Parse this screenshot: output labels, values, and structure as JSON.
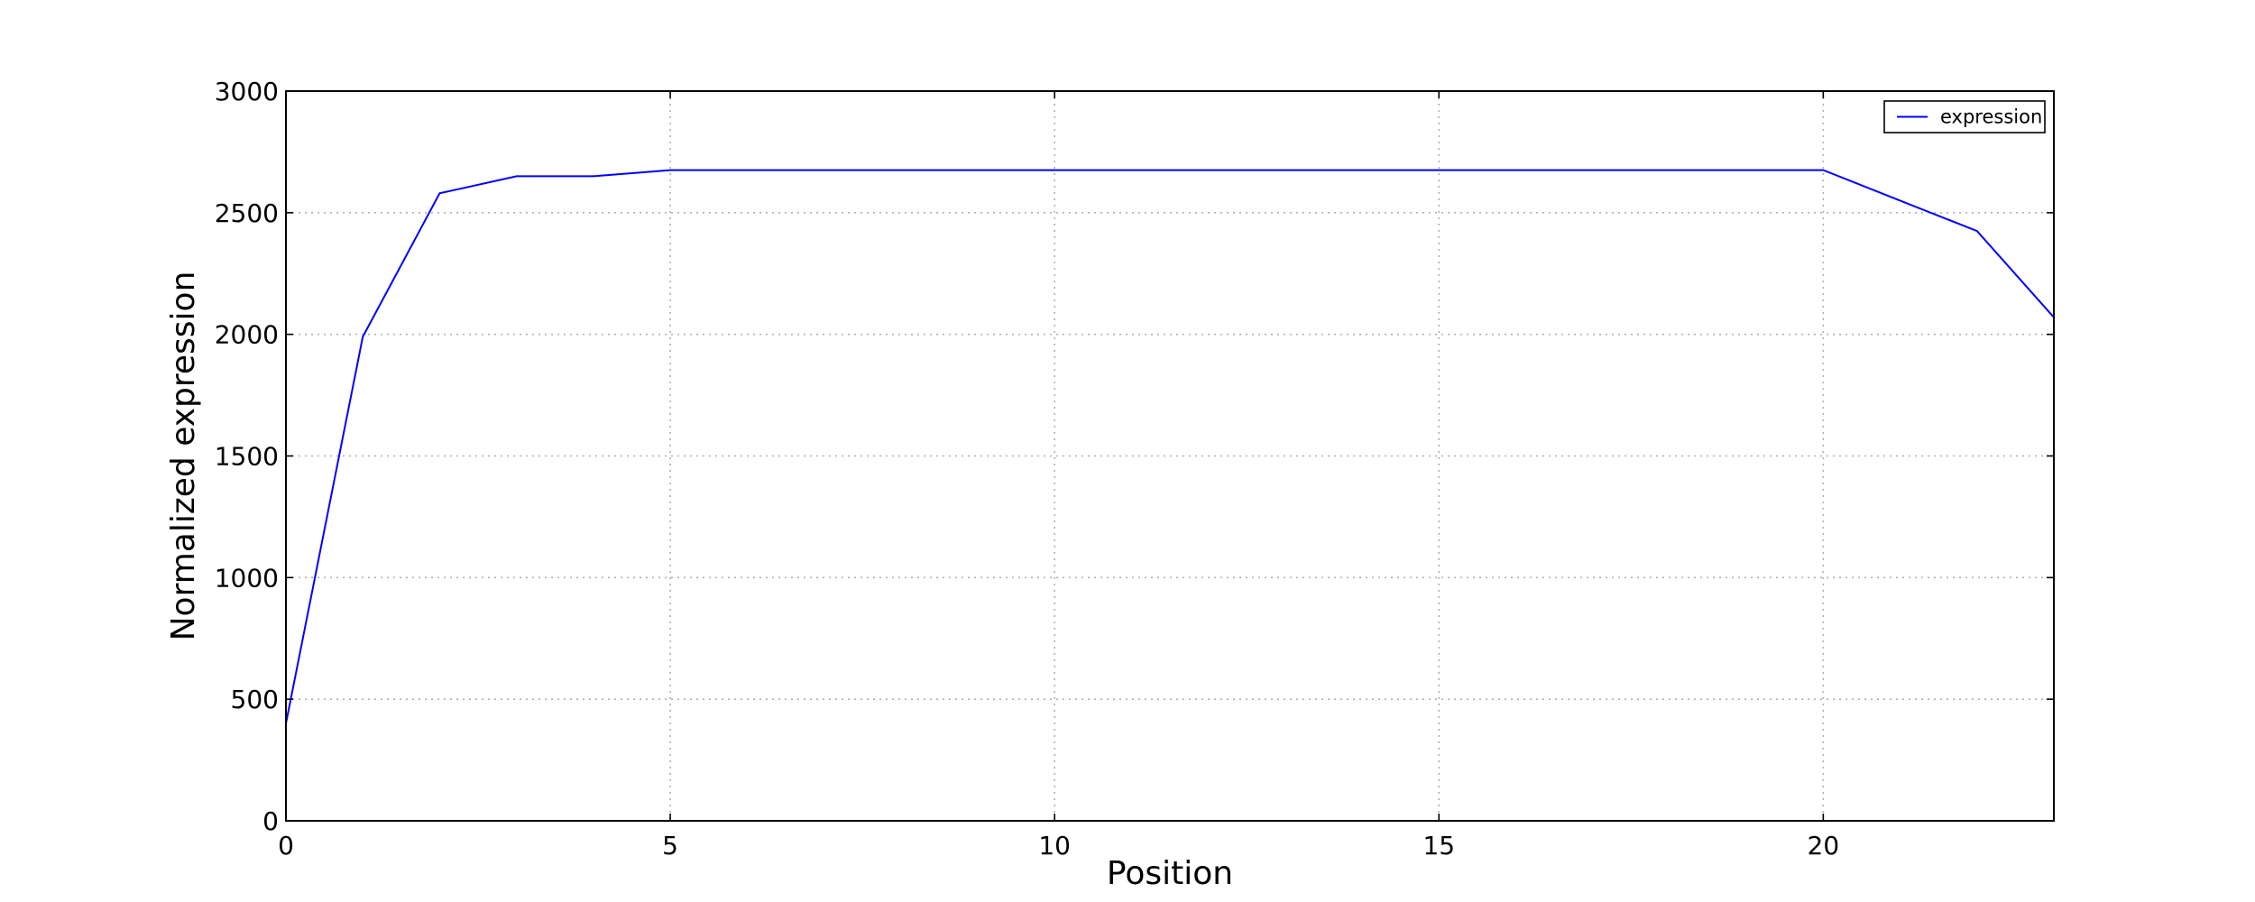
{
  "chart_data": {
    "type": "line",
    "title": "",
    "xlabel": "Position",
    "ylabel": "Normalized expression",
    "xlim": [
      0,
      23
    ],
    "ylim": [
      0,
      3000
    ],
    "xticks": [
      0,
      5,
      10,
      15,
      20
    ],
    "yticks": [
      0,
      500,
      1000,
      1500,
      2000,
      2500,
      3000
    ],
    "grid": true,
    "legend_position": "top-right",
    "series": [
      {
        "name": "expression",
        "color": "#0000ff",
        "x": [
          0,
          1,
          2,
          3,
          4,
          5,
          6,
          7,
          8,
          9,
          10,
          11,
          12,
          13,
          14,
          15,
          16,
          17,
          18,
          19,
          20,
          21,
          22,
          23
        ],
        "y": [
          400,
          1990,
          2580,
          2650,
          2650,
          2675,
          2675,
          2675,
          2675,
          2675,
          2675,
          2675,
          2675,
          2675,
          2675,
          2675,
          2675,
          2675,
          2675,
          2675,
          2675,
          2550,
          2425,
          2070
        ]
      }
    ]
  }
}
